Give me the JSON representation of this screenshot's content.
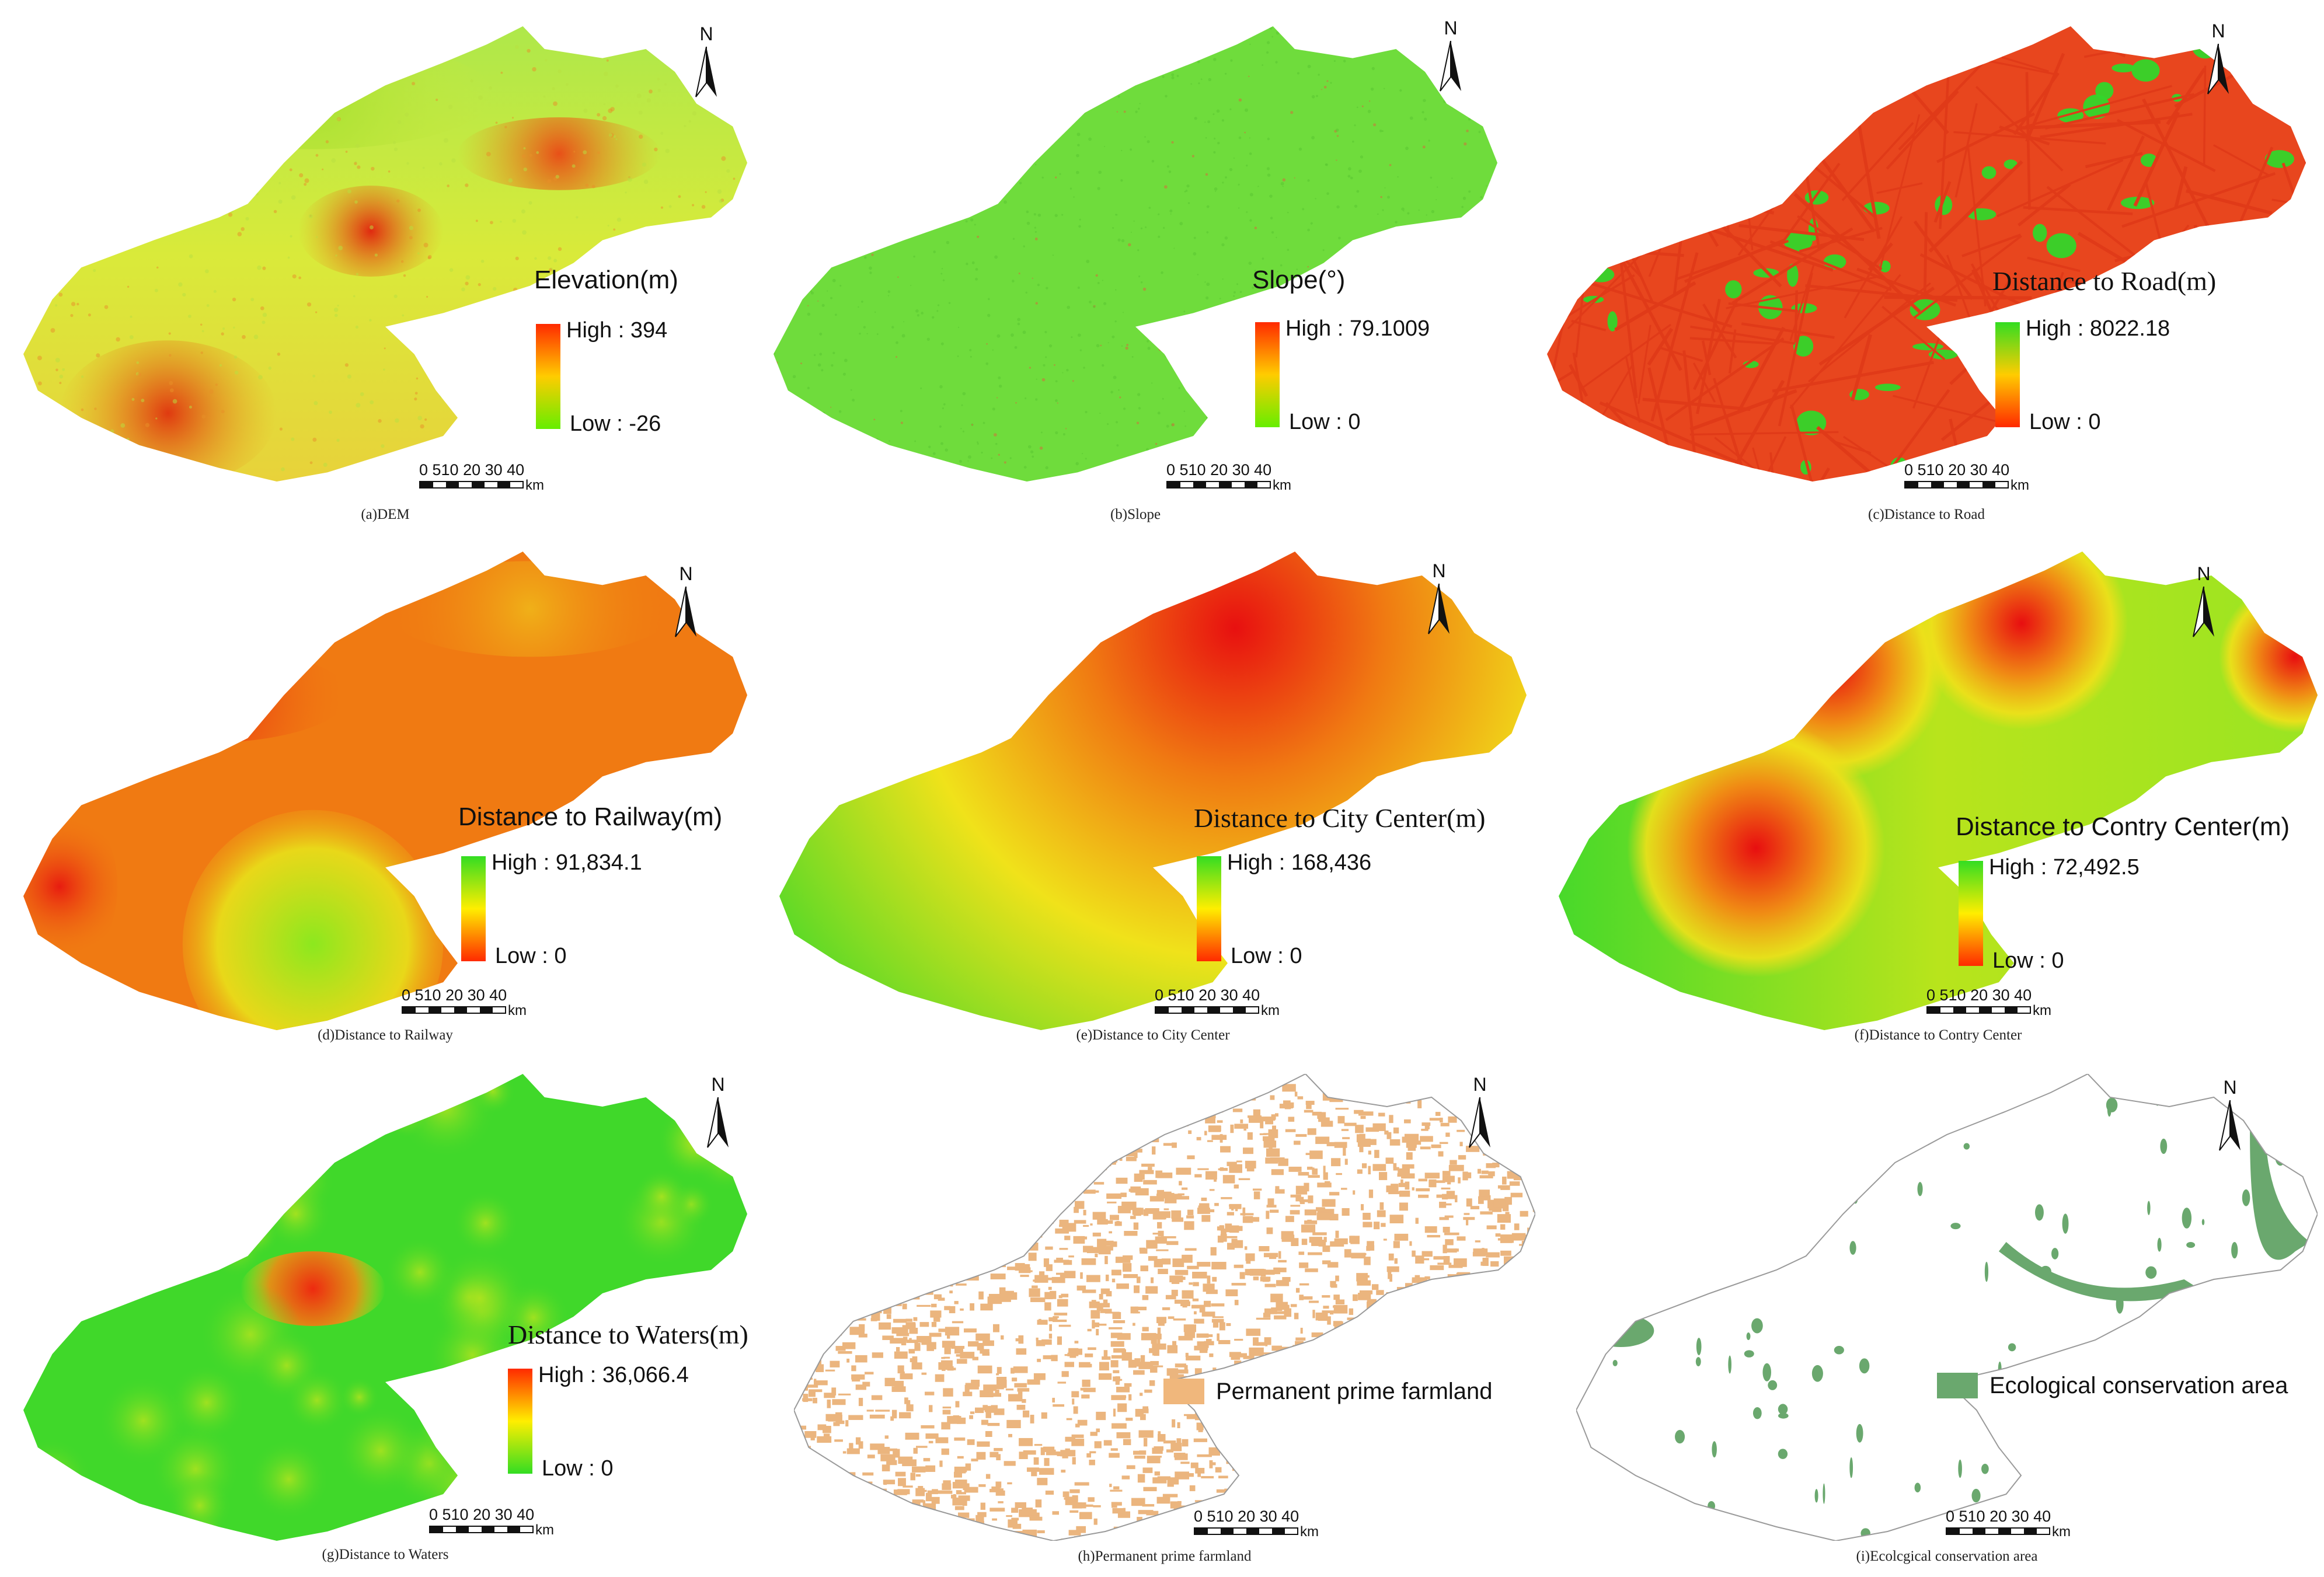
{
  "figure": {
    "panels": [
      {
        "id": "a",
        "caption": "(a)DEM",
        "legend_title": "Elevation(m)",
        "legend_font": "sans",
        "legend_type": "ramp",
        "ramp": [
          "#ff2a00",
          "#ffcc00",
          "#66ee00"
        ],
        "high": "High : 394",
        "low": "Low : -26"
      },
      {
        "id": "b",
        "caption": "(b)Slope",
        "legend_title": "Slope(°)",
        "legend_font": "sans",
        "legend_type": "ramp",
        "ramp": [
          "#ff2a00",
          "#ffcc00",
          "#66ee00"
        ],
        "high": "High : 79.1009",
        "low": "Low : 0"
      },
      {
        "id": "c",
        "caption": "(c)Distance to Road",
        "legend_title": "Distance to Road(m)",
        "legend_font": "serif",
        "legend_type": "ramp",
        "ramp": [
          "#33dd22",
          "#ffcc00",
          "#ff2a00"
        ],
        "high": "High : 8022.18",
        "low": "Low : 0"
      },
      {
        "id": "d",
        "caption": "(d)Distance to Railway",
        "legend_title": "Distance to Railway(m)",
        "legend_font": "sans",
        "legend_type": "ramp",
        "ramp": [
          "#33dd22",
          "#ffee00",
          "#ff2a00"
        ],
        "high": "High : 91,834.1",
        "low": "Low : 0"
      },
      {
        "id": "e",
        "caption": "(e)Distance to City Center",
        "legend_title": "Distance to City Center(m)",
        "legend_font": "serif",
        "legend_type": "ramp",
        "ramp": [
          "#33dd22",
          "#ffee00",
          "#ff2a00"
        ],
        "high": "High : 168,436",
        "low": "Low : 0"
      },
      {
        "id": "f",
        "caption": "(f)Distance to Contry Center",
        "legend_title": "Distance to Contry Center(m)",
        "legend_font": "sans",
        "legend_type": "ramp",
        "ramp": [
          "#33dd22",
          "#ffee00",
          "#ff2a00"
        ],
        "high": "High : 72,492.5",
        "low": "Low : 0"
      },
      {
        "id": "g",
        "caption": "(g)Distance to Waters",
        "legend_title": "Distance to Waters(m)",
        "legend_font": "serif",
        "legend_type": "ramp",
        "ramp": [
          "#ff2a00",
          "#ffee00",
          "#33dd22"
        ],
        "high": "High : 36,066.4",
        "low": "Low : 0"
      },
      {
        "id": "h",
        "caption": "(h)Permanent prime farmland",
        "legend_type": "category",
        "category_color": "#f0b77c",
        "category_label": "Permanent prime farmland"
      },
      {
        "id": "i",
        "caption": "(i)Ecolcgical conservation area",
        "legend_type": "category",
        "category_color": "#6aa86e",
        "category_label": "Ecological conservation area"
      }
    ],
    "scale": {
      "ticks": "0 510 20 30 40",
      "unit": "km"
    },
    "north_label": "N"
  }
}
